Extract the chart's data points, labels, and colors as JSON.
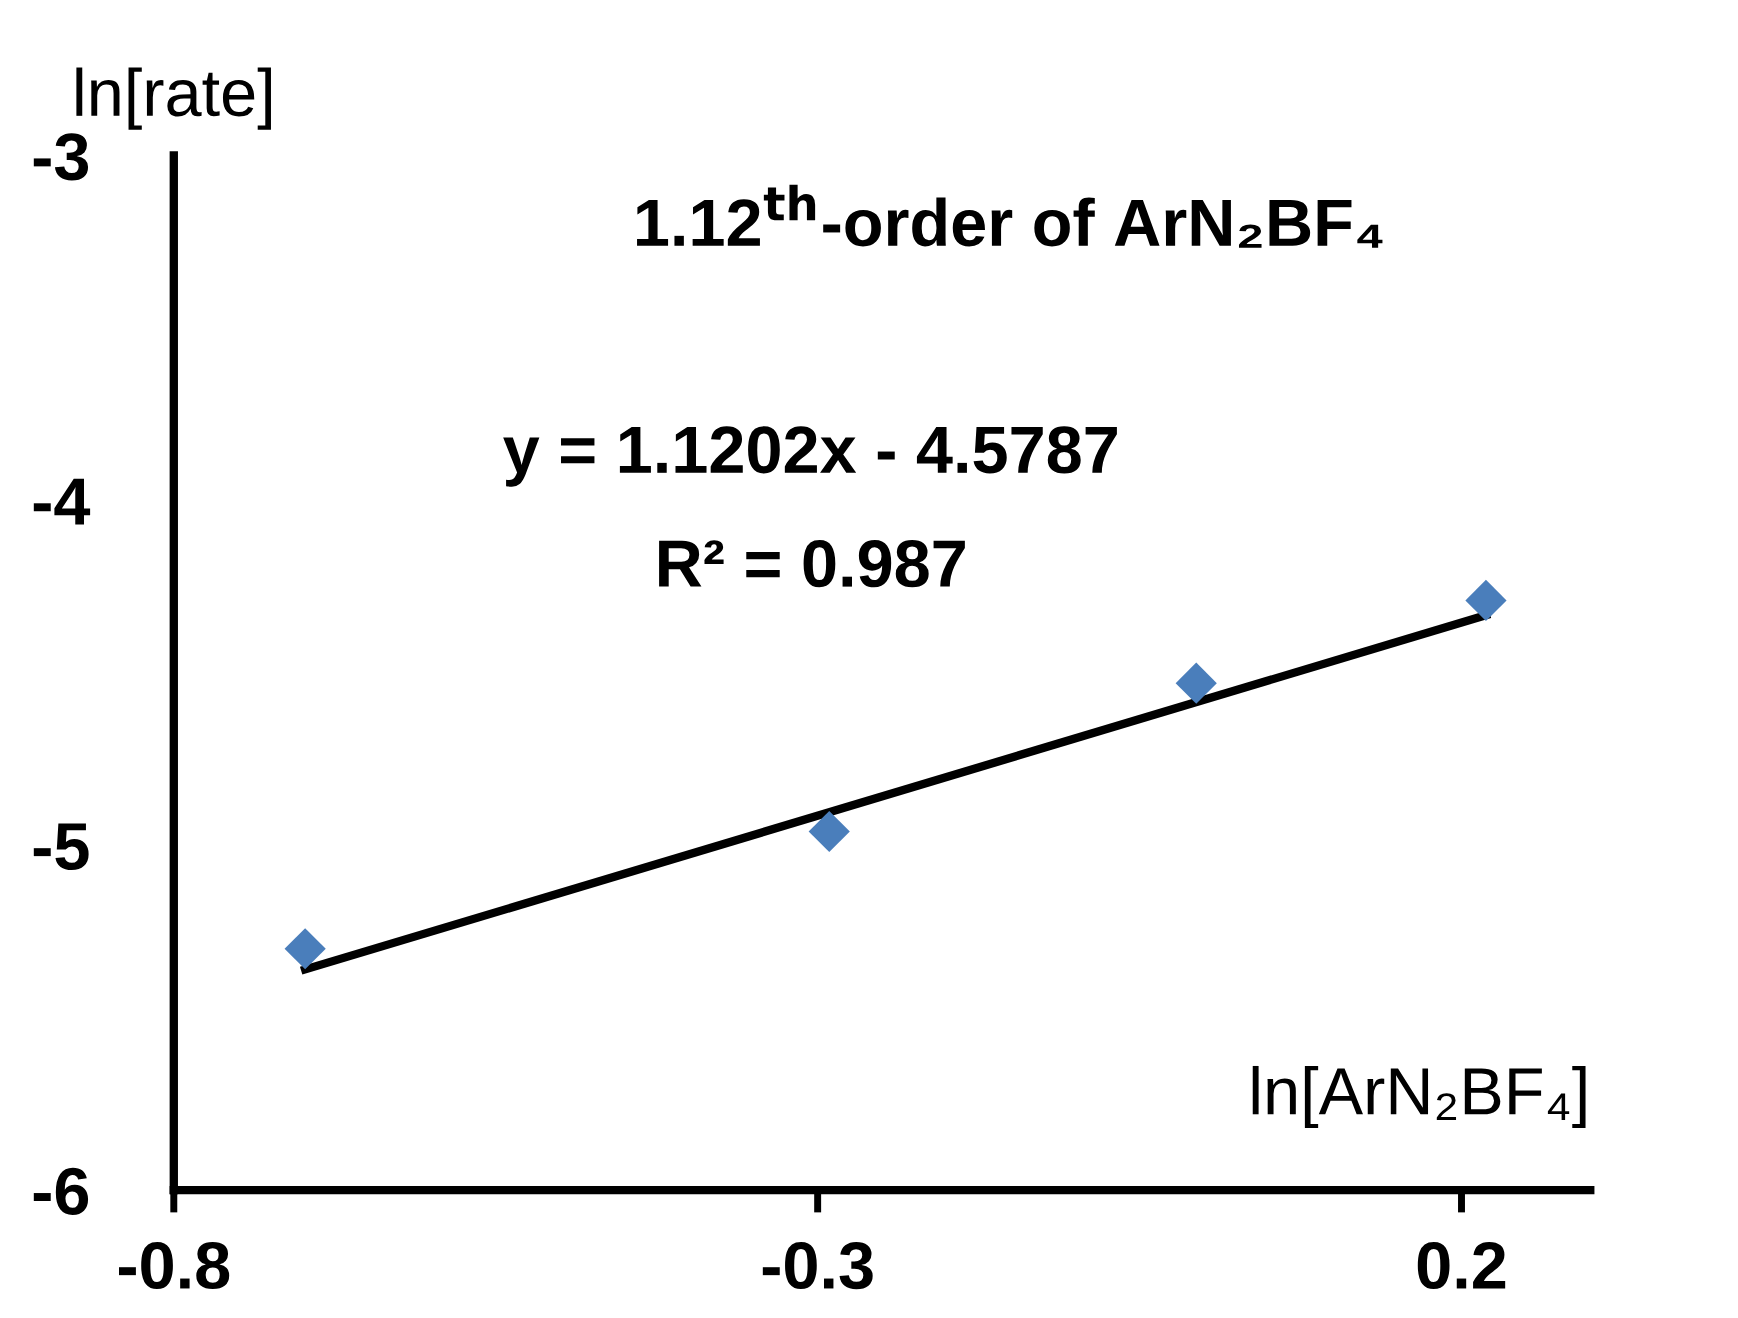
{
  "chart_data": {
    "type": "scatter",
    "title": "1.12$^{th}$-order of ArN₂BF₄",
    "xlabel": "ln[ArN₂BF₄]",
    "ylabel": "ln[rate]",
    "series": [
      {
        "color": "#4a7ebb",
        "marker": "diamond",
        "x": [
          -0.698,
          -0.291,
          -0.006,
          0.219
        ],
        "values": [
          -5.3,
          -4.96,
          -4.53,
          -4.29
        ]
      },
      {
        "type": "line",
        "color": "#000000",
        "marker": "none",
        "line_style": "solid",
        "x": [
          -0.698,
          0.219
        ],
        "values": [
          -5.36,
          -4.333
        ]
      }
    ],
    "annotations": [
      "y = 1.1202x - 4.5787",
      "R² = 0.987"
    ],
    "xlim": [
      -0.8,
      0.3
    ],
    "ylim": [
      -6,
      -3
    ],
    "xticks": [
      -0.8,
      -0.3,
      0.2
    ],
    "yticks": [
      -3,
      -4,
      -5,
      -6
    ],
    "grid": false,
    "legend": false
  }
}
